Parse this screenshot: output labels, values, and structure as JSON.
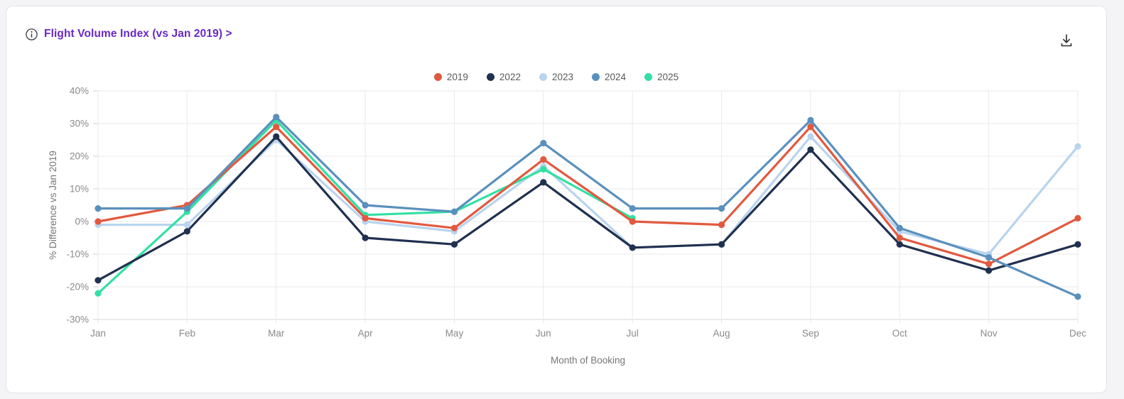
{
  "card": {
    "title": "Flight Volume Index (vs Jan 2019) >",
    "info_icon": "info-icon",
    "download_icon": "download-icon"
  },
  "chart_data": {
    "type": "line",
    "title": "Flight Volume Index (vs Jan 2019) >",
    "categories": [
      "Jan",
      "Feb",
      "Mar",
      "Apr",
      "May",
      "Jun",
      "Jul",
      "Aug",
      "Sep",
      "Oct",
      "Nov",
      "Dec"
    ],
    "xlabel": "Month of Booking",
    "ylabel": "% Difference vs Jan 2019",
    "ylim": [
      -30,
      40
    ],
    "ytick_step": 10,
    "ytick_suffix": "%",
    "grid": true,
    "legend_position": "top-center",
    "series": [
      {
        "name": "2019",
        "color": "#e2593f",
        "values": [
          0,
          5,
          29,
          1,
          -2,
          19,
          0,
          -1,
          29,
          -5,
          -13,
          1
        ]
      },
      {
        "name": "2022",
        "color": "#20304f",
        "values": [
          -18,
          -3,
          26,
          -5,
          -7,
          12,
          -8,
          -7,
          22,
          -7,
          -15,
          -7
        ]
      },
      {
        "name": "2023",
        "color": "#b9d4ee",
        "values": [
          -1,
          -1,
          25,
          0,
          -3,
          17,
          -8,
          -7,
          26,
          -3,
          -10,
          23
        ]
      },
      {
        "name": "2024",
        "color": "#5a90bd",
        "values": [
          4,
          4,
          32,
          5,
          3,
          24,
          4,
          4,
          31,
          -2,
          -11,
          -23
        ]
      },
      {
        "name": "2025",
        "color": "#33e0a3",
        "values": [
          -22,
          3,
          31,
          2,
          3,
          16,
          1,
          null,
          null,
          null,
          null,
          null
        ]
      }
    ],
    "draw_order": [
      "2023",
      "2025",
      "2019",
      "2022",
      "2024"
    ]
  }
}
